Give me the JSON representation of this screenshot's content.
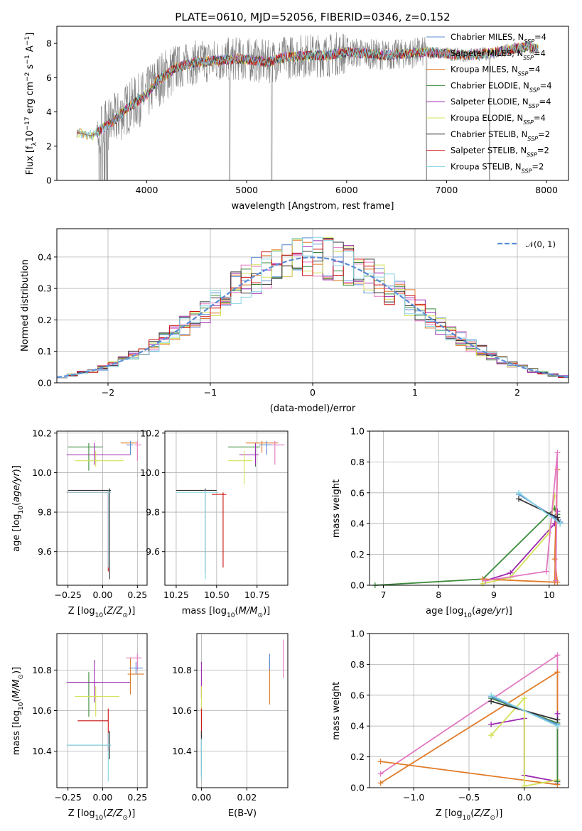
{
  "figure_title": "PLATE=0610, MJD=52056, FIBERID=0346, z=0.152",
  "chart_data": [
    {
      "id": "spectrum",
      "type": "line",
      "title": "PLATE=0610, MJD=52056, FIBERID=0346, z=0.152",
      "xlabel": "wavelength [Angstrom, rest frame]",
      "ylabel": "Flux [f_λ10^-17 erg cm^-2 s^-1 A^-1]",
      "xlim": [
        3100,
        8220
      ],
      "ylim": [
        0,
        9
      ],
      "xticks": [
        4000,
        5000,
        6000,
        7000,
        8000
      ],
      "yticks": [
        0,
        2,
        4,
        6,
        8
      ],
      "grid": false,
      "legend_position": "top-right",
      "data_color": "#808080",
      "continuum": {
        "x": [
          3300,
          3450,
          3550,
          3700,
          3800,
          3900,
          4000,
          4100,
          4200,
          4300,
          4500,
          4700,
          4900,
          5100,
          5200,
          5400,
          5600,
          5800,
          6000,
          6200,
          6400,
          6600,
          6800,
          7000,
          7200,
          7400,
          7600,
          7800,
          7900
        ],
        "y": [
          2.8,
          2.6,
          3.0,
          3.6,
          4.2,
          4.6,
          5.0,
          5.8,
          6.2,
          6.6,
          6.9,
          7.0,
          7.1,
          7.0,
          6.9,
          7.2,
          7.3,
          7.3,
          7.5,
          7.4,
          7.3,
          7.4,
          7.5,
          7.4,
          7.3,
          7.4,
          7.6,
          7.8,
          7.7
        ]
      },
      "legend": [
        {
          "label": "Chabrier MILES, N",
          "sub": "SSP",
          "suffix": "=4",
          "color": "#5b8dd6"
        },
        {
          "label": "Salpeter MILES, N",
          "sub": "SSP",
          "suffix": "=4",
          "color": "#e377c2"
        },
        {
          "label": "Kroupa MILES, N",
          "sub": "SSP",
          "suffix": "=4",
          "color": "#e07b28"
        },
        {
          "label": "Chabrier ELODIE, N",
          "sub": "SSP",
          "suffix": "=4",
          "color": "#3c8a3c"
        },
        {
          "label": "Salpeter ELODIE, N",
          "sub": "SSP",
          "suffix": "=4",
          "color": "#9c27b0"
        },
        {
          "label": "Kroupa ELODIE, N",
          "sub": "SSP",
          "suffix": "=4",
          "color": "#d4e157"
        },
        {
          "label": "Chabrier STELIB, N",
          "sub": "SSP",
          "suffix": "=2",
          "color": "#333333"
        },
        {
          "label": "Salpeter STELIB, N",
          "sub": "SSP",
          "suffix": "=2",
          "color": "#cc1111"
        },
        {
          "label": "Kroupa STELIB, N",
          "sub": "SSP",
          "suffix": "=2",
          "color": "#86d3e3"
        }
      ]
    },
    {
      "id": "residuals",
      "type": "line",
      "xlabel": "(data-model)/error",
      "ylabel": "Normed distribution",
      "xlim": [
        -2.5,
        2.5
      ],
      "ylim": [
        0,
        0.49
      ],
      "xticks": [
        -2,
        -1,
        0,
        1,
        2
      ],
      "yticks": [
        0.0,
        0.1,
        0.2,
        0.3,
        0.4
      ],
      "grid": true,
      "legend_position": "top-right",
      "gaussian_label": "𝒩(0, 1)",
      "gaussian_color": "#5b8dd6"
    },
    {
      "id": "age_vs_Z",
      "type": "scatter",
      "xlabel": "Z [log10(Z/Z⊙)]",
      "ylabel": "age  [log10(age/yr)]",
      "xlim": [
        -0.33,
        0.32
      ],
      "ylim": [
        9.43,
        10.21
      ],
      "xticks": [
        -0.25,
        0.0,
        0.25
      ],
      "yticks": [
        9.6,
        9.8,
        10.0,
        10.2
      ],
      "grid": true,
      "points": [
        {
          "color": "#3c8a3c",
          "x": -0.1,
          "y": 10.13,
          "xerr": [
            0.15,
            0.1
          ],
          "yerr": [
            0.12,
            0.02
          ]
        },
        {
          "color": "#9c27b0",
          "x": -0.06,
          "y": 10.09,
          "xerr": [
            0.2,
            0.26
          ],
          "yerr": [
            0.05,
            0.06
          ]
        },
        {
          "color": "#d4e157",
          "x": -0.05,
          "y": 10.06,
          "xerr": [
            0.15,
            0.2
          ],
          "yerr": [
            0.03,
            0.05
          ]
        },
        {
          "color": "#e07b28",
          "x": 0.2,
          "y": 10.15,
          "xerr": [
            0.07,
            0.05
          ],
          "yerr": [
            0.05,
            0.01
          ]
        },
        {
          "color": "#e377c2",
          "x": 0.25,
          "y": 10.14,
          "xerr": [
            0.02,
            0.03
          ],
          "yerr": [
            0.08,
            0.02
          ]
        },
        {
          "color": "#5b8dd6",
          "x": 0.2,
          "y": 10.14,
          "xerr": [
            0.03,
            0.02
          ],
          "yerr": [
            0.05,
            0.02
          ]
        },
        {
          "color": "#cc1111",
          "x": 0.04,
          "y": 9.9,
          "xerr": [
            0.3,
            0.02
          ],
          "yerr": [
            0.4,
            0.01
          ]
        },
        {
          "color": "#333333",
          "x": 0.05,
          "y": 9.91,
          "xerr": [
            0.3,
            0.01
          ],
          "yerr": [
            0.45,
            0.01
          ]
        },
        {
          "color": "#86d3e3",
          "x": 0.04,
          "y": 9.9,
          "xerr": [
            0.3,
            0.02
          ],
          "yerr": [
            0.38,
            0.01
          ]
        }
      ]
    },
    {
      "id": "age_vs_mass",
      "type": "scatter",
      "xlabel": "mass [log10(M/M⊙)]",
      "ylabel": "",
      "xlim": [
        10.18,
        10.94
      ],
      "ylim": [
        9.43,
        10.21
      ],
      "xticks": [
        10.25,
        10.5,
        10.75
      ],
      "yticks": [
        9.6,
        9.8,
        10.0,
        10.2
      ],
      "grid": true,
      "points": [
        {
          "color": "#3c8a3c",
          "x": 10.74,
          "y": 10.13,
          "xerr": [
            0.17,
            0.03
          ],
          "yerr": [
            0.1,
            0.02
          ]
        },
        {
          "color": "#9c27b0",
          "x": 10.74,
          "y": 10.09,
          "xerr": [
            0.1,
            0.02
          ],
          "yerr": [
            0.05,
            0.06
          ]
        },
        {
          "color": "#d4e157",
          "x": 10.67,
          "y": 10.06,
          "xerr": [
            0.1,
            0.05
          ],
          "yerr": [
            0.12,
            0.05
          ]
        },
        {
          "color": "#e07b28",
          "x": 10.78,
          "y": 10.15,
          "xerr": [
            0.1,
            0.1
          ],
          "yerr": [
            0.05,
            0.01
          ]
        },
        {
          "color": "#e377c2",
          "x": 10.86,
          "y": 10.14,
          "xerr": [
            0.06,
            0.06
          ],
          "yerr": [
            0.1,
            0.02
          ]
        },
        {
          "color": "#5b8dd6",
          "x": 10.81,
          "y": 10.14,
          "xerr": [
            0.05,
            0.03
          ],
          "yerr": [
            0.05,
            0.02
          ]
        },
        {
          "color": "#cc1111",
          "x": 10.54,
          "y": 9.89,
          "xerr": [
            0.07,
            0.02
          ],
          "yerr": [
            0.37,
            0.01
          ]
        },
        {
          "color": "#333333",
          "x": 10.43,
          "y": 9.91,
          "xerr": [
            0.18,
            0.07
          ],
          "yerr": [
            0.42,
            0.01
          ]
        },
        {
          "color": "#86d3e3",
          "x": 10.43,
          "y": 9.9,
          "xerr": [
            0.18,
            0.08
          ],
          "yerr": [
            0.44,
            0.01
          ]
        }
      ]
    },
    {
      "id": "weight_vs_age",
      "type": "line",
      "xlabel": "age  [log10(age/yr)]",
      "ylabel": "mass weight",
      "xlim": [
        6.75,
        10.35
      ],
      "ylim": [
        0,
        1
      ],
      "xticks": [
        7,
        8,
        9,
        10
      ],
      "yticks": [
        0.0,
        0.2,
        0.4,
        0.6,
        0.8,
        1.0
      ],
      "grid": true,
      "series": [
        {
          "color": "#3c8a3c",
          "x": [
            6.85,
            8.8,
            10.1,
            10.15
          ],
          "y": [
            0.0,
            0.04,
            0.5,
            0.46
          ]
        },
        {
          "color": "#9c27b0",
          "x": [
            8.85,
            9.3,
            10.1,
            10.15
          ],
          "y": [
            0.03,
            0.08,
            0.4,
            0.48
          ]
        },
        {
          "color": "#d4e157",
          "x": [
            8.8,
            9.3,
            10.0,
            10.1
          ],
          "y": [
            0.01,
            0.05,
            0.34,
            0.58
          ]
        },
        {
          "color": "#e07b28",
          "x": [
            8.8,
            10.1,
            10.15,
            10.1,
            10.15
          ],
          "y": [
            0.04,
            0.02,
            0.75,
            0.17,
            0.02
          ]
        },
        {
          "color": "#e377c2",
          "x": [
            8.85,
            9.95,
            10.15,
            10.12
          ],
          "y": [
            0.03,
            0.09,
            0.86,
            0.03
          ]
        },
        {
          "color": "#5b8dd6",
          "x": [
            9.45,
            10.1,
            10.2
          ],
          "y": [
            0.59,
            0.44,
            0.41
          ]
        },
        {
          "color": "#333333",
          "x": [
            9.45,
            10.15,
            10.2
          ],
          "y": [
            0.56,
            0.44,
            0.4
          ]
        },
        {
          "color": "#86d3e3",
          "x": [
            9.45,
            10.2
          ],
          "y": [
            0.6,
            0.4
          ]
        }
      ]
    },
    {
      "id": "mass_vs_Z",
      "type": "scatter",
      "xlabel": "Z [log10(Z/Z⊙)]",
      "ylabel": "mass [log10(M/M⊙)]",
      "xlim": [
        -0.33,
        0.32
      ],
      "ylim": [
        10.22,
        10.98
      ],
      "xticks": [
        -0.25,
        0.0,
        0.25
      ],
      "yticks": [
        10.4,
        10.6,
        10.8
      ],
      "grid": true,
      "points": [
        {
          "color": "#3c8a3c",
          "x": -0.1,
          "y": 10.74,
          "xerr": [
            0.14,
            0.08
          ],
          "yerr": [
            0.17,
            0.05
          ]
        },
        {
          "color": "#9c27b0",
          "x": -0.06,
          "y": 10.74,
          "xerr": [
            0.2,
            0.26
          ],
          "yerr": [
            0.1,
            0.11
          ]
        },
        {
          "color": "#d4e157",
          "x": -0.05,
          "y": 10.67,
          "xerr": [
            0.15,
            0.17
          ],
          "yerr": [
            0.1,
            0.05
          ]
        },
        {
          "color": "#e07b28",
          "x": 0.2,
          "y": 10.78,
          "xerr": [
            0.02,
            0.1
          ],
          "yerr": [
            0.1,
            0.08
          ]
        },
        {
          "color": "#e377c2",
          "x": 0.25,
          "y": 10.86,
          "xerr": [
            0.08,
            0.03
          ],
          "yerr": [
            0.06,
            0.02
          ]
        },
        {
          "color": "#5b8dd6",
          "x": 0.24,
          "y": 10.81,
          "xerr": [
            0.05,
            0.05
          ],
          "yerr": [
            0.03,
            0.03
          ]
        },
        {
          "color": "#cc1111",
          "x": 0.04,
          "y": 10.55,
          "xerr": [
            0.22,
            0.0
          ],
          "yerr": [
            0.15,
            0.06
          ]
        },
        {
          "color": "#333333",
          "x": 0.05,
          "y": 10.43,
          "xerr": [
            0.3,
            0.01
          ],
          "yerr": [
            0.07,
            0.07
          ]
        },
        {
          "color": "#86d3e3",
          "x": 0.04,
          "y": 10.43,
          "xerr": [
            0.3,
            0.02
          ],
          "yerr": [
            0.18,
            0.06
          ]
        }
      ]
    },
    {
      "id": "mass_vs_EBV",
      "type": "scatter",
      "xlabel": "E(B-V)",
      "ylabel": "",
      "xlim": [
        -0.002,
        0.038
      ],
      "ylim": [
        10.22,
        10.98
      ],
      "xticks": [
        0.0,
        0.02
      ],
      "yticks": [
        10.4,
        10.6,
        10.8
      ],
      "grid": true,
      "points": [
        {
          "color": "#9c27b0",
          "x": 0.0,
          "y": 10.74,
          "xerr": [
            0,
            0
          ],
          "yerr": [
            0.08,
            0.1
          ]
        },
        {
          "color": "#d4e157",
          "x": 0.0,
          "y": 10.67,
          "xerr": [
            0,
            0
          ],
          "yerr": [
            0.1,
            0.05
          ]
        },
        {
          "color": "#cc1111",
          "x": 0.0,
          "y": 10.55,
          "xerr": [
            0,
            0
          ],
          "yerr": [
            0.08,
            0.06
          ]
        },
        {
          "color": "#333333",
          "x": 0.0,
          "y": 10.43,
          "xerr": [
            0,
            0
          ],
          "yerr": [
            0.15,
            0.07
          ]
        },
        {
          "color": "#86d3e3",
          "x": 0.0,
          "y": 10.4,
          "xerr": [
            0,
            0
          ],
          "yerr": [
            0.14,
            0.06
          ]
        },
        {
          "color": "#e07b28",
          "x": 0.03,
          "y": 10.78,
          "xerr": [
            0,
            0
          ],
          "yerr": [
            0.15,
            0.07
          ]
        },
        {
          "color": "#5b8dd6",
          "x": 0.03,
          "y": 10.83,
          "xerr": [
            0,
            0
          ],
          "yerr": [
            0.03,
            0.05
          ]
        },
        {
          "color": "#e377c2",
          "x": 0.036,
          "y": 10.86,
          "xerr": [
            0,
            0
          ],
          "yerr": [
            0.1,
            0.09
          ]
        }
      ]
    },
    {
      "id": "weight_vs_Z",
      "type": "line",
      "xlabel": "Z [log10(Z/Z⊙)]",
      "ylabel": "mass weight",
      "xlim": [
        -1.4,
        0.4
      ],
      "ylim": [
        0,
        1
      ],
      "xticks": [
        -1.0,
        -0.5,
        0.0
      ],
      "yticks": [
        0.0,
        0.2,
        0.4,
        0.6,
        0.8,
        1.0
      ],
      "grid": true,
      "series": [
        {
          "color": "#e377c2",
          "x": [
            -1.3,
            0.3,
            0.3
          ],
          "y": [
            0.09,
            0.86,
            0.03
          ]
        },
        {
          "color": "#e07b28",
          "x": [
            -1.3,
            0.3,
            0.3,
            -1.3
          ],
          "y": [
            0.03,
            0.75,
            0.02,
            0.17
          ]
        },
        {
          "color": "#9c27b0",
          "x": [
            -0.3,
            0.0,
            0.0,
            0.3,
            0.3
          ],
          "y": [
            0.41,
            0.45,
            0.08,
            0.04,
            0.48
          ]
        },
        {
          "color": "#d4e157",
          "x": [
            -0.3,
            0.0,
            0.0,
            0.3
          ],
          "y": [
            0.34,
            0.58,
            0.01,
            0.05
          ]
        },
        {
          "color": "#3c8a3c",
          "x": [
            -0.3,
            0.3,
            0.3
          ],
          "y": [
            0.58,
            0.42,
            0.04
          ]
        },
        {
          "color": "#5b8dd6",
          "x": [
            -0.3,
            0.3
          ],
          "y": [
            0.59,
            0.41
          ]
        },
        {
          "color": "#333333",
          "x": [
            -0.3,
            0.3
          ],
          "y": [
            0.56,
            0.44
          ]
        },
        {
          "color": "#86d3e3",
          "x": [
            -0.3,
            0.3
          ],
          "y": [
            0.6,
            0.4
          ]
        }
      ]
    }
  ]
}
